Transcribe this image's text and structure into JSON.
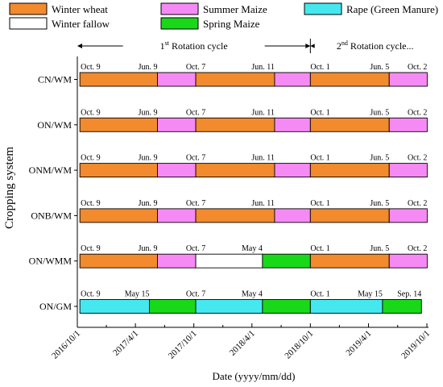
{
  "chart_data": {
    "type": "gantt",
    "xlabel": "Date (yyyy/mm/dd)",
    "ylabel": "Cropping system",
    "xlim": [
      "2016/10/1",
      "2019/10/1"
    ],
    "x_ticks": [
      "2016/10/1",
      "2017/4/1",
      "2017/10/1",
      "2018/4/1",
      "2018/10/1",
      "2019/4/1",
      "2019/10/1"
    ],
    "legend": [
      {
        "key": "winter_wheat",
        "label": "Winter wheat",
        "color": "#f28a2e"
      },
      {
        "key": "summer_maize",
        "label": "Summer Maize",
        "color": "#f58af5"
      },
      {
        "key": "rape",
        "label": "Rape (Green Manure)",
        "color": "#44e8ee"
      },
      {
        "key": "winter_fallow",
        "label": "Winter fallow",
        "color": "#ffffff"
      },
      {
        "key": "spring_maize",
        "label": "Spring Maize",
        "color": "#19d819"
      }
    ],
    "cycles": [
      {
        "label_main": "1",
        "label_sup": "st",
        "label_rest": " Rotation cycle",
        "start": "2016/10/1",
        "end": "2018/10/1"
      },
      {
        "label_main": "2",
        "label_sup": "nd",
        "label_rest": " Rotation cycle...",
        "start": "2018/10/1",
        "end": "2019/10/1"
      }
    ],
    "systems": [
      {
        "name": "CN/WM",
        "segments": [
          {
            "crop": "winter_wheat",
            "start": "2016/10/9",
            "end": "2017/6/9"
          },
          {
            "crop": "summer_maize",
            "start": "2017/6/9",
            "end": "2017/10/7"
          },
          {
            "crop": "winter_wheat",
            "start": "2017/10/7",
            "end": "2018/6/11"
          },
          {
            "crop": "summer_maize",
            "start": "2018/6/11",
            "end": "2018/10/1"
          },
          {
            "crop": "winter_wheat",
            "start": "2018/10/1",
            "end": "2019/6/5"
          },
          {
            "crop": "summer_maize",
            "start": "2019/6/5",
            "end": "2019/10/2"
          }
        ],
        "labels": [
          "Oct. 9",
          "Jun. 9",
          "Oct. 7",
          "Jun. 11",
          "Oct. 1",
          "Jun. 5",
          "Oct. 2"
        ]
      },
      {
        "name": "ON/WM",
        "segments": [
          {
            "crop": "winter_wheat",
            "start": "2016/10/9",
            "end": "2017/6/9"
          },
          {
            "crop": "summer_maize",
            "start": "2017/6/9",
            "end": "2017/10/7"
          },
          {
            "crop": "winter_wheat",
            "start": "2017/10/7",
            "end": "2018/6/11"
          },
          {
            "crop": "summer_maize",
            "start": "2018/6/11",
            "end": "2018/10/1"
          },
          {
            "crop": "winter_wheat",
            "start": "2018/10/1",
            "end": "2019/6/5"
          },
          {
            "crop": "summer_maize",
            "start": "2019/6/5",
            "end": "2019/10/2"
          }
        ],
        "labels": [
          "Oct. 9",
          "Jun. 9",
          "Oct. 7",
          "Jun. 11",
          "Oct. 1",
          "Jun. 5",
          "Oct. 2"
        ]
      },
      {
        "name": "ONM/WM",
        "segments": [
          {
            "crop": "winter_wheat",
            "start": "2016/10/9",
            "end": "2017/6/9"
          },
          {
            "crop": "summer_maize",
            "start": "2017/6/9",
            "end": "2017/10/7"
          },
          {
            "crop": "winter_wheat",
            "start": "2017/10/7",
            "end": "2018/6/11"
          },
          {
            "crop": "summer_maize",
            "start": "2018/6/11",
            "end": "2018/10/1"
          },
          {
            "crop": "winter_wheat",
            "start": "2018/10/1",
            "end": "2019/6/5"
          },
          {
            "crop": "summer_maize",
            "start": "2019/6/5",
            "end": "2019/10/2"
          }
        ],
        "labels": [
          "Oct. 9",
          "Jun. 9",
          "Oct. 7",
          "Jun. 11",
          "Oct. 1",
          "Jun. 5",
          "Oct. 2"
        ]
      },
      {
        "name": "ONB/WM",
        "segments": [
          {
            "crop": "winter_wheat",
            "start": "2016/10/9",
            "end": "2017/6/9"
          },
          {
            "crop": "summer_maize",
            "start": "2017/6/9",
            "end": "2017/10/7"
          },
          {
            "crop": "winter_wheat",
            "start": "2017/10/7",
            "end": "2018/6/11"
          },
          {
            "crop": "summer_maize",
            "start": "2018/6/11",
            "end": "2018/10/1"
          },
          {
            "crop": "winter_wheat",
            "start": "2018/10/1",
            "end": "2019/6/5"
          },
          {
            "crop": "summer_maize",
            "start": "2019/6/5",
            "end": "2019/10/2"
          }
        ],
        "labels": [
          "Oct. 9",
          "Jun. 9",
          "Oct. 7",
          "Jun. 11",
          "Oct. 1",
          "Jun. 5",
          "Oct. 2"
        ]
      },
      {
        "name": "ON/WMM",
        "segments": [
          {
            "crop": "winter_wheat",
            "start": "2016/10/9",
            "end": "2017/6/9"
          },
          {
            "crop": "summer_maize",
            "start": "2017/6/9",
            "end": "2017/10/7"
          },
          {
            "crop": "winter_fallow",
            "start": "2017/10/7",
            "end": "2018/5/4"
          },
          {
            "crop": "spring_maize",
            "start": "2018/5/4",
            "end": "2018/10/1"
          },
          {
            "crop": "winter_wheat",
            "start": "2018/10/1",
            "end": "2019/6/5"
          },
          {
            "crop": "summer_maize",
            "start": "2019/6/5",
            "end": "2019/10/2"
          }
        ],
        "labels": [
          "Oct. 9",
          "Jun. 9",
          "Oct. 7",
          "May 4",
          "Oct. 1",
          "Jun. 5",
          "Oct. 2"
        ]
      },
      {
        "name": "ON/GM",
        "segments": [
          {
            "crop": "rape",
            "start": "2016/10/9",
            "end": "2017/5/15"
          },
          {
            "crop": "spring_maize",
            "start": "2017/5/15",
            "end": "2017/10/7"
          },
          {
            "crop": "rape",
            "start": "2017/10/7",
            "end": "2018/5/4"
          },
          {
            "crop": "spring_maize",
            "start": "2018/5/4",
            "end": "2018/10/1"
          },
          {
            "crop": "rape",
            "start": "2018/10/1",
            "end": "2019/5/15"
          },
          {
            "crop": "spring_maize",
            "start": "2019/5/15",
            "end": "2019/9/14"
          }
        ],
        "labels": [
          "Oct. 9",
          "May 15",
          "Oct. 7",
          "May 4",
          "Oct. 1",
          "May 15",
          "Sep. 14"
        ]
      }
    ]
  }
}
